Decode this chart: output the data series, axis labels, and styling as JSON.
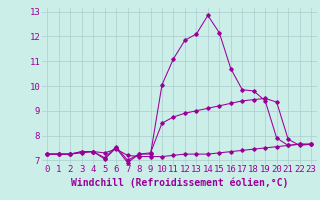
{
  "xlabel": "Windchill (Refroidissement éolien,°C)",
  "bg_color": "#cceee8",
  "grid_color": "#aacccc",
  "line_color": "#990099",
  "x_min": 0,
  "x_max": 23,
  "y_min": 7,
  "y_max": 13,
  "series": [
    [
      7.25,
      7.25,
      7.25,
      7.35,
      7.35,
      7.05,
      7.5,
      6.9,
      7.25,
      7.25,
      10.05,
      11.1,
      11.85,
      12.1,
      12.85,
      12.15,
      10.7,
      9.85,
      9.8,
      9.4,
      7.9,
      7.6,
      7.65,
      7.65
    ],
    [
      7.25,
      7.25,
      7.25,
      7.3,
      7.35,
      7.3,
      7.45,
      7.2,
      7.15,
      7.15,
      7.15,
      7.2,
      7.25,
      7.25,
      7.25,
      7.3,
      7.35,
      7.4,
      7.45,
      7.5,
      7.55,
      7.6,
      7.65,
      7.65
    ],
    [
      7.25,
      7.25,
      7.25,
      7.35,
      7.35,
      7.1,
      7.55,
      7.0,
      7.25,
      7.3,
      8.5,
      8.75,
      8.9,
      9.0,
      9.1,
      9.2,
      9.3,
      9.4,
      9.45,
      9.5,
      9.35,
      7.85,
      7.6,
      7.65
    ]
  ],
  "xlabel_fontsize": 7,
  "tick_fontsize": 6.5
}
